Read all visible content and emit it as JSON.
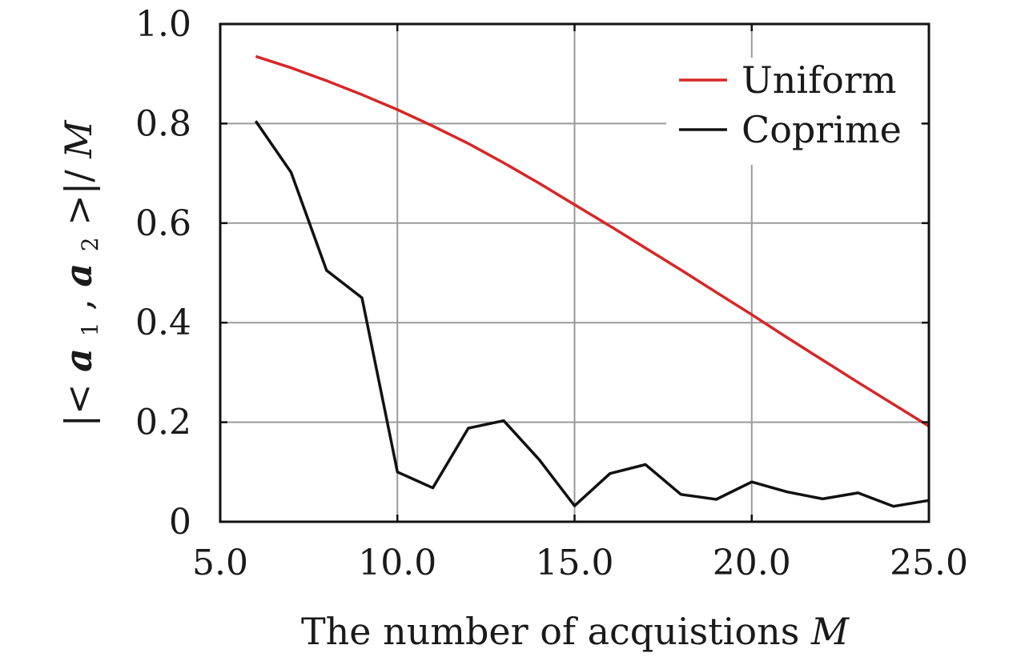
{
  "chart_data": {
    "type": "line",
    "xlabel": "The number of acquistions",
    "xlabel_var": "M",
    "ylabel": {
      "open": "|<",
      "var1": "a",
      "sub1": "1",
      "comma": ",",
      "var2": "a",
      "sub2": "2",
      "close": ">|/",
      "denominator": "M"
    },
    "xlim": [
      5.0,
      25.0
    ],
    "ylim": [
      0,
      1.0
    ],
    "xticks": [
      5.0,
      10.0,
      15.0,
      20.0,
      25.0
    ],
    "xtick_labels": [
      "5.0",
      "10.0",
      "15.0",
      "20.0",
      "25.0"
    ],
    "yticks": [
      0,
      0.2,
      0.4,
      0.6,
      0.8,
      1.0
    ],
    "ytick_labels": [
      "0",
      "0.2",
      "0.4",
      "0.6",
      "0.8",
      "1.0"
    ],
    "grid": true,
    "legend_position": "top-right",
    "series": [
      {
        "name": "Uniform",
        "color": "#d62728",
        "x": [
          6,
          7,
          8,
          9,
          10,
          11,
          12,
          13,
          14,
          15,
          16,
          17,
          18,
          19,
          20,
          21,
          22,
          23,
          24,
          25
        ],
        "y": [
          0.935,
          0.912,
          0.886,
          0.858,
          0.828,
          0.795,
          0.76,
          0.721,
          0.68,
          0.637,
          0.594,
          0.55,
          0.506,
          0.461,
          0.416,
          0.37,
          0.325,
          0.28,
          0.236,
          0.192
        ]
      },
      {
        "name": "Coprime",
        "color": "#111111",
        "x": [
          6,
          7,
          8,
          9,
          10,
          11,
          12,
          13,
          14,
          15,
          16,
          17,
          18,
          19,
          20,
          21,
          22,
          23,
          24,
          25
        ],
        "y": [
          0.805,
          0.702,
          0.505,
          0.45,
          0.1,
          0.068,
          0.188,
          0.203,
          0.125,
          0.032,
          0.097,
          0.115,
          0.055,
          0.045,
          0.08,
          0.06,
          0.046,
          0.058,
          0.031,
          0.043
        ]
      }
    ]
  }
}
